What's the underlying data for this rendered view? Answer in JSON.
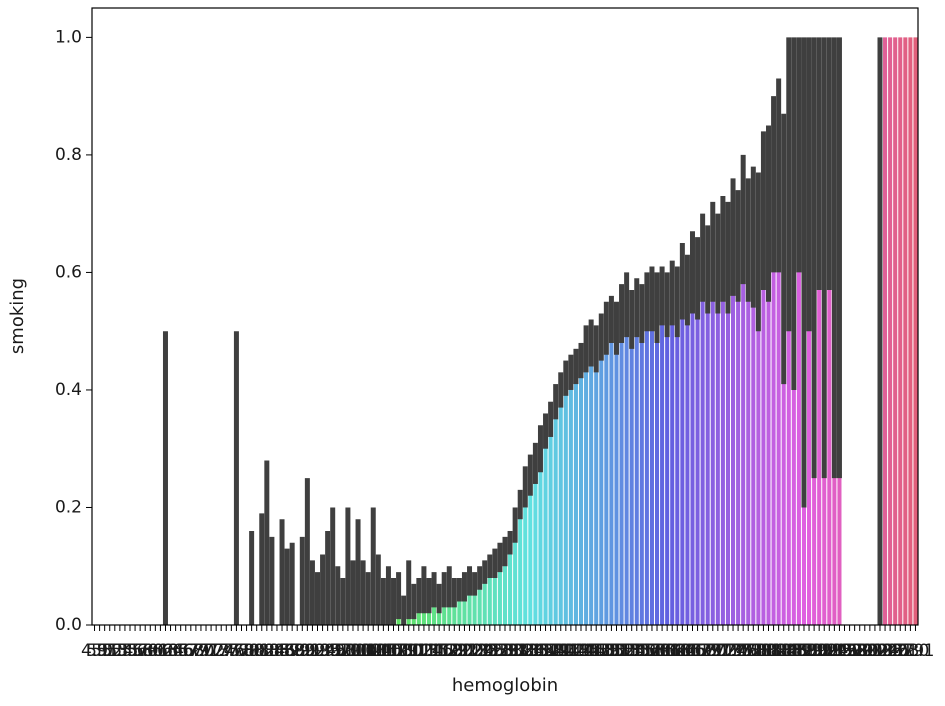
{
  "chart_data": {
    "type": "bar",
    "x_label": "hemoglobin",
    "y_label": "smoking",
    "palette": "husl",
    "error_color": "#3f3f3f",
    "categories": [
      "4.9",
      "5.0",
      "5.1",
      "5.2",
      "5.3",
      "5.4",
      "5.5",
      "5.6",
      "5.7",
      "5.8",
      "5.9",
      "6.0",
      "6.1",
      "6.2",
      "6.3",
      "6.4",
      "6.5",
      "6.6",
      "6.7",
      "6.8",
      "6.9",
      "7.0",
      "7.1",
      "7.2",
      "7.3",
      "7.4",
      "7.5",
      "7.6",
      "7.7",
      "7.8",
      "7.9",
      "8.0",
      "8.1",
      "8.2",
      "8.3",
      "8.4",
      "8.5",
      "8.6",
      "8.7",
      "8.8",
      "8.9",
      "9.0",
      "9.1",
      "9.2",
      "9.3",
      "9.4",
      "9.5",
      "9.6",
      "9.7",
      "9.8",
      "9.9",
      "10.0",
      "10.1",
      "10.2",
      "10.3",
      "10.4",
      "10.5",
      "10.6",
      "10.7",
      "10.8",
      "10.9",
      "11.0",
      "11.1",
      "11.2",
      "11.3",
      "11.4",
      "11.5",
      "11.6",
      "11.7",
      "11.8",
      "11.9",
      "12.0",
      "12.1",
      "12.2",
      "12.3",
      "12.4",
      "12.5",
      "12.6",
      "12.7",
      "12.8",
      "12.9",
      "13.0",
      "13.1",
      "13.2",
      "13.3",
      "13.4",
      "13.5",
      "13.6",
      "13.7",
      "13.8",
      "13.9",
      "14.0",
      "14.1",
      "14.2",
      "14.3",
      "14.4",
      "14.5",
      "14.6",
      "14.7",
      "14.8",
      "14.9",
      "15.0",
      "15.1",
      "15.2",
      "15.3",
      "15.4",
      "15.5",
      "15.6",
      "15.7",
      "15.8",
      "15.9",
      "16.0",
      "16.1",
      "16.2",
      "16.3",
      "16.4",
      "16.5",
      "16.6",
      "16.7",
      "16.8",
      "16.9",
      "17.0",
      "17.1",
      "17.2",
      "17.3",
      "17.4",
      "17.5",
      "17.6",
      "17.7",
      "17.8",
      "17.9",
      "18.0",
      "18.1",
      "18.2",
      "18.3",
      "18.4",
      "18.5",
      "18.6",
      "18.7",
      "18.8",
      "18.9",
      "19.0",
      "19.1",
      "19.2",
      "19.3",
      "19.4",
      "19.5",
      "19.6",
      "19.7",
      "19.8",
      "19.9",
      "20.0",
      "20.1",
      "20.2",
      "20.3",
      "20.4",
      "20.5",
      "20.6",
      "20.7",
      "20.8",
      "20.9",
      "21.0",
      "21.1"
    ],
    "values": [
      0,
      0,
      0,
      0,
      0,
      0,
      0,
      0,
      0,
      0,
      0,
      0,
      0,
      0,
      0.25,
      0,
      0,
      0,
      0,
      0,
      0,
      0,
      0,
      0,
      0,
      0,
      0,
      0,
      0.25,
      0,
      0,
      0.05,
      0,
      0.07,
      0.12,
      0.05,
      0,
      0.06,
      0.04,
      0.04,
      0,
      0.05,
      0.1,
      0.03,
      0.02,
      0.04,
      0.06,
      0.02,
      0.03,
      0.02,
      0.07,
      0.03,
      0.06,
      0.03,
      0.02,
      0.04,
      0.04,
      0.02,
      0.03,
      0.02,
      0.02,
      0.01,
      0.04,
      0.03,
      0.04,
      0.05,
      0.04,
      0.05,
      0.04,
      0.05,
      0.06,
      0.05,
      0.05,
      0.06,
      0.07,
      0.07,
      0.08,
      0.09,
      0.1,
      0.1,
      0.11,
      0.12,
      0.14,
      0.17,
      0.2,
      0.23,
      0.25,
      0.27,
      0.3,
      0.33,
      0.35,
      0.38,
      0.4,
      0.42,
      0.43,
      0.44,
      0.45,
      0.47,
      0.48,
      0.47,
      0.49,
      0.5,
      0.52,
      0.5,
      0.53,
      0.54,
      0.52,
      0.54,
      0.53,
      0.55,
      0.55,
      0.54,
      0.56,
      0.55,
      0.57,
      0.55,
      0.58,
      0.57,
      0.6,
      0.59,
      0.62,
      0.6,
      0.63,
      0.61,
      0.63,
      0.62,
      0.65,
      0.64,
      0.68,
      0.65,
      0.66,
      0.64,
      0.71,
      0.7,
      0.75,
      0.77,
      0.64,
      0.75,
      0.7,
      0.82,
      0.6,
      0.76,
      0.62,
      0.8,
      0.67,
      0.78,
      0.67,
      0.67,
      0,
      0,
      0,
      0,
      0,
      0,
      0,
      0.5,
      1,
      1,
      1,
      1,
      1,
      1,
      1
    ],
    "ci": [
      [
        0,
        0
      ],
      [
        0,
        0
      ],
      [
        0,
        0
      ],
      [
        0,
        0
      ],
      [
        0,
        0
      ],
      [
        0,
        0
      ],
      [
        0,
        0
      ],
      [
        0,
        0
      ],
      [
        0,
        0
      ],
      [
        0,
        0
      ],
      [
        0,
        0
      ],
      [
        0,
        0
      ],
      [
        0,
        0
      ],
      [
        0,
        0
      ],
      [
        0,
        0.5
      ],
      [
        0,
        0
      ],
      [
        0,
        0
      ],
      [
        0,
        0
      ],
      [
        0,
        0
      ],
      [
        0,
        0
      ],
      [
        0,
        0
      ],
      [
        0,
        0
      ],
      [
        0,
        0
      ],
      [
        0,
        0
      ],
      [
        0,
        0
      ],
      [
        0,
        0
      ],
      [
        0,
        0
      ],
      [
        0,
        0
      ],
      [
        0,
        0.5
      ],
      [
        0,
        0
      ],
      [
        0,
        0
      ],
      [
        0,
        0.16
      ],
      [
        0,
        0
      ],
      [
        0,
        0.19
      ],
      [
        0,
        0.28
      ],
      [
        0,
        0.15
      ],
      [
        0,
        0
      ],
      [
        0,
        0.18
      ],
      [
        0,
        0.13
      ],
      [
        0,
        0.14
      ],
      [
        0,
        0
      ],
      [
        0,
        0.15
      ],
      [
        0,
        0.25
      ],
      [
        0,
        0.11
      ],
      [
        0,
        0.09
      ],
      [
        0,
        0.12
      ],
      [
        0,
        0.16
      ],
      [
        0,
        0.2
      ],
      [
        0,
        0.1
      ],
      [
        0,
        0.08
      ],
      [
        0,
        0.2
      ],
      [
        0,
        0.11
      ],
      [
        0,
        0.18
      ],
      [
        0,
        0.11
      ],
      [
        0,
        0.09
      ],
      [
        0,
        0.2
      ],
      [
        0,
        0.12
      ],
      [
        0,
        0.08
      ],
      [
        0,
        0.1
      ],
      [
        0,
        0.08
      ],
      [
        0.01,
        0.09
      ],
      [
        0,
        0.05
      ],
      [
        0.01,
        0.11
      ],
      [
        0.01,
        0.07
      ],
      [
        0.02,
        0.08
      ],
      [
        0.02,
        0.1
      ],
      [
        0.02,
        0.08
      ],
      [
        0.03,
        0.09
      ],
      [
        0.02,
        0.07
      ],
      [
        0.03,
        0.09
      ],
      [
        0.03,
        0.1
      ],
      [
        0.03,
        0.08
      ],
      [
        0.04,
        0.08
      ],
      [
        0.04,
        0.09
      ],
      [
        0.05,
        0.1
      ],
      [
        0.05,
        0.09
      ],
      [
        0.06,
        0.1
      ],
      [
        0.07,
        0.11
      ],
      [
        0.08,
        0.12
      ],
      [
        0.08,
        0.13
      ],
      [
        0.09,
        0.14
      ],
      [
        0.1,
        0.15
      ],
      [
        0.12,
        0.16
      ],
      [
        0.14,
        0.2
      ],
      [
        0.18,
        0.23
      ],
      [
        0.2,
        0.27
      ],
      [
        0.22,
        0.29
      ],
      [
        0.24,
        0.31
      ],
      [
        0.26,
        0.34
      ],
      [
        0.3,
        0.36
      ],
      [
        0.32,
        0.38
      ],
      [
        0.35,
        0.41
      ],
      [
        0.37,
        0.43
      ],
      [
        0.39,
        0.45
      ],
      [
        0.4,
        0.46
      ],
      [
        0.41,
        0.47
      ],
      [
        0.42,
        0.48
      ],
      [
        0.43,
        0.51
      ],
      [
        0.44,
        0.52
      ],
      [
        0.43,
        0.51
      ],
      [
        0.45,
        0.53
      ],
      [
        0.46,
        0.55
      ],
      [
        0.48,
        0.56
      ],
      [
        0.46,
        0.55
      ],
      [
        0.48,
        0.58
      ],
      [
        0.49,
        0.6
      ],
      [
        0.47,
        0.57
      ],
      [
        0.49,
        0.59
      ],
      [
        0.48,
        0.58
      ],
      [
        0.5,
        0.6
      ],
      [
        0.5,
        0.61
      ],
      [
        0.48,
        0.6
      ],
      [
        0.51,
        0.61
      ],
      [
        0.49,
        0.6
      ],
      [
        0.51,
        0.62
      ],
      [
        0.49,
        0.61
      ],
      [
        0.52,
        0.65
      ],
      [
        0.51,
        0.63
      ],
      [
        0.53,
        0.67
      ],
      [
        0.52,
        0.66
      ],
      [
        0.55,
        0.7
      ],
      [
        0.53,
        0.68
      ],
      [
        0.55,
        0.72
      ],
      [
        0.53,
        0.7
      ],
      [
        0.55,
        0.73
      ],
      [
        0.53,
        0.72
      ],
      [
        0.56,
        0.76
      ],
      [
        0.55,
        0.74
      ],
      [
        0.58,
        0.8
      ],
      [
        0.55,
        0.76
      ],
      [
        0.54,
        0.78
      ],
      [
        0.5,
        0.77
      ],
      [
        0.57,
        0.84
      ],
      [
        0.55,
        0.85
      ],
      [
        0.6,
        0.9
      ],
      [
        0.6,
        0.93
      ],
      [
        0.41,
        0.87
      ],
      [
        0.5,
        1
      ],
      [
        0.4,
        1
      ],
      [
        0.6,
        1
      ],
      [
        0.2,
        1
      ],
      [
        0.5,
        1
      ],
      [
        0.25,
        1
      ],
      [
        0.57,
        1
      ],
      [
        0.25,
        1
      ],
      [
        0.57,
        1
      ],
      [
        0.25,
        1
      ],
      [
        0.25,
        1
      ],
      [
        0,
        0
      ],
      [
        0,
        0
      ],
      [
        0,
        0
      ],
      [
        0,
        0
      ],
      [
        0,
        0
      ],
      [
        0,
        0
      ],
      [
        0,
        0
      ],
      [
        0,
        1
      ],
      [
        1,
        1
      ],
      [
        1,
        1
      ],
      [
        1,
        1
      ],
      [
        1,
        1
      ],
      [
        1,
        1
      ],
      [
        1,
        1
      ],
      [
        1,
        1
      ]
    ],
    "ylim": [
      0,
      1.05
    ],
    "yticks": [
      {
        "value": 0,
        "label": "0.0"
      },
      {
        "value": 0.2,
        "label": "0.2"
      },
      {
        "value": 0.4,
        "label": "0.4"
      },
      {
        "value": 0.6,
        "label": "0.6"
      },
      {
        "value": 0.8,
        "label": "0.8"
      },
      {
        "value": 1,
        "label": "1.0"
      }
    ]
  }
}
